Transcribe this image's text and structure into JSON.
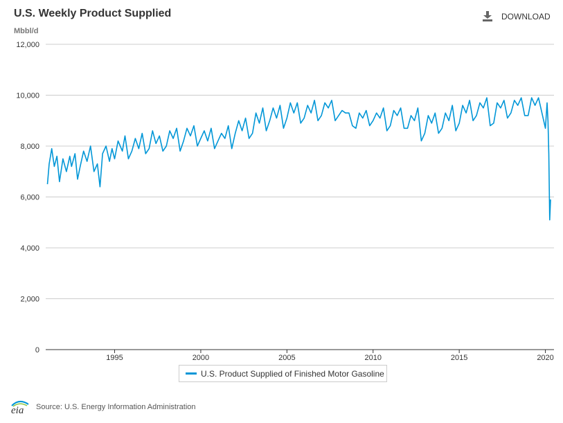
{
  "header": {
    "title": "U.S. Weekly Product Supplied",
    "unit": "Mbbl/d",
    "download_label": "DOWNLOAD"
  },
  "footer": {
    "logo_text": "eia",
    "source": "Source: U.S. Energy Information Administration"
  },
  "colors": {
    "series": "#0096d7",
    "grid": "#cccccc",
    "axis": "#333333"
  },
  "chart_data": {
    "type": "line",
    "title": "U.S. Weekly Product Supplied",
    "ylabel": "Mbbl/d",
    "xlabel": "",
    "xlim": [
      1991.0,
      2020.5
    ],
    "ylim": [
      0,
      12000
    ],
    "x_ticks": [
      1995,
      2000,
      2005,
      2010,
      2015,
      2020
    ],
    "y_ticks": [
      0,
      2000,
      4000,
      6000,
      8000,
      10000,
      12000
    ],
    "y_tick_labels": [
      "0",
      "2,000",
      "4,000",
      "6,000",
      "8,000",
      "10,000",
      "12,000"
    ],
    "grid": "horizontal",
    "legend_position": "bottom-center",
    "series": [
      {
        "name": "U.S. Product Supplied of Finished Motor Gasoline",
        "color": "#0096d7",
        "x": [
          1991.1,
          1991.2,
          1991.35,
          1991.5,
          1991.65,
          1991.8,
          1992.0,
          1992.2,
          1992.4,
          1992.5,
          1992.7,
          1992.85,
          1993.0,
          1993.2,
          1993.4,
          1993.6,
          1993.8,
          1994.0,
          1994.15,
          1994.3,
          1994.5,
          1994.7,
          1994.85,
          1995.0,
          1995.2,
          1995.45,
          1995.6,
          1995.8,
          1996.0,
          1996.2,
          1996.4,
          1996.6,
          1996.8,
          1997.0,
          1997.2,
          1997.4,
          1997.6,
          1997.8,
          1998.0,
          1998.2,
          1998.4,
          1998.6,
          1998.8,
          1999.0,
          1999.2,
          1999.4,
          1999.6,
          1999.8,
          2000.0,
          2000.2,
          2000.4,
          2000.6,
          2000.8,
          2001.0,
          2001.2,
          2001.4,
          2001.6,
          2001.8,
          2002.0,
          2002.2,
          2002.4,
          2002.6,
          2002.8,
          2003.0,
          2003.2,
          2003.4,
          2003.6,
          2003.8,
          2004.0,
          2004.2,
          2004.4,
          2004.6,
          2004.8,
          2005.0,
          2005.2,
          2005.4,
          2005.6,
          2005.8,
          2006.0,
          2006.2,
          2006.4,
          2006.6,
          2006.8,
          2007.0,
          2007.2,
          2007.4,
          2007.6,
          2007.8,
          2008.0,
          2008.2,
          2008.4,
          2008.6,
          2008.8,
          2009.0,
          2009.2,
          2009.4,
          2009.6,
          2009.8,
          2010.0,
          2010.2,
          2010.4,
          2010.6,
          2010.8,
          2011.0,
          2011.2,
          2011.4,
          2011.6,
          2011.8,
          2012.0,
          2012.2,
          2012.4,
          2012.6,
          2012.8,
          2013.0,
          2013.2,
          2013.4,
          2013.6,
          2013.8,
          2014.0,
          2014.2,
          2014.4,
          2014.6,
          2014.8,
          2015.0,
          2015.2,
          2015.4,
          2015.6,
          2015.8,
          2016.0,
          2016.2,
          2016.4,
          2016.6,
          2016.8,
          2017.0,
          2017.2,
          2017.4,
          2017.6,
          2017.8,
          2018.0,
          2018.2,
          2018.4,
          2018.6,
          2018.8,
          2019.0,
          2019.2,
          2019.4,
          2019.6,
          2019.8,
          2020.0,
          2020.1,
          2020.15,
          2020.2,
          2020.25,
          2020.3
        ],
        "values": [
          6500,
          7300,
          7900,
          7200,
          7600,
          6600,
          7500,
          7000,
          7600,
          7200,
          7700,
          6700,
          7200,
          7800,
          7400,
          8000,
          7000,
          7300,
          6400,
          7700,
          8000,
          7400,
          7900,
          7500,
          8200,
          7800,
          8400,
          7500,
          7800,
          8300,
          7900,
          8500,
          7700,
          7900,
          8600,
          8100,
          8400,
          7800,
          8000,
          8600,
          8300,
          8700,
          7800,
          8200,
          8700,
          8400,
          8800,
          8000,
          8300,
          8600,
          8200,
          8700,
          7900,
          8200,
          8500,
          8300,
          8800,
          7900,
          8500,
          9000,
          8600,
          9100,
          8300,
          8500,
          9300,
          8900,
          9500,
          8600,
          9000,
          9500,
          9100,
          9600,
          8700,
          9100,
          9700,
          9300,
          9700,
          8900,
          9100,
          9600,
          9300,
          9800,
          9000,
          9200,
          9700,
          9500,
          9800,
          9000,
          9200,
          9400,
          9300,
          9300,
          8800,
          8700,
          9300,
          9100,
          9400,
          8800,
          9000,
          9300,
          9100,
          9500,
          8600,
          8800,
          9400,
          9200,
          9500,
          8700,
          8700,
          9200,
          9000,
          9500,
          8200,
          8500,
          9200,
          8900,
          9300,
          8500,
          8700,
          9300,
          9000,
          9600,
          8600,
          8900,
          9600,
          9300,
          9800,
          9000,
          9200,
          9700,
          9500,
          9900,
          8800,
          8900,
          9700,
          9500,
          9800,
          9100,
          9300,
          9800,
          9600,
          9900,
          9200,
          9200,
          9900,
          9600,
          9900,
          9300,
          8700,
          9700,
          9000,
          7700,
          5100,
          5900
        ]
      }
    ]
  }
}
